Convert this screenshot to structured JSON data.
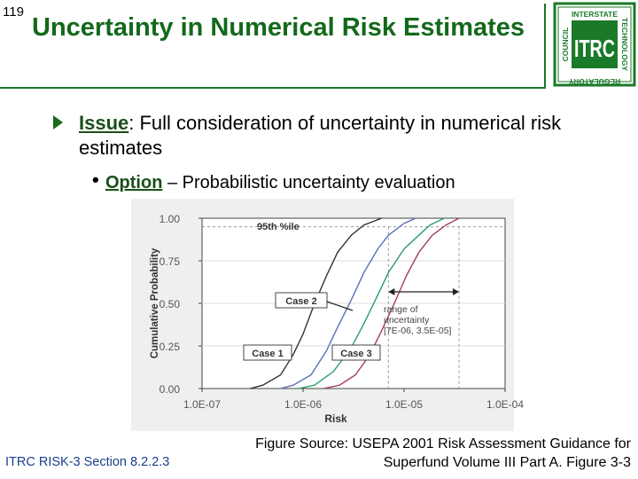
{
  "slide_number": "119",
  "title": "Uncertainty in Numerical Risk Estimates",
  "logo": {
    "main": "ITRC",
    "top": "INTERSTATE",
    "right": "TECHNOLOGY",
    "left": "COUNCIL",
    "bottom": "REGULATORY",
    "color": "#1a7a2a"
  },
  "issue": {
    "label": "Issue",
    "text": ": Full consideration of uncertainty in numerical risk estimates"
  },
  "option": {
    "label": "Option",
    "text": " – Probabilistic uncertainty evaluation"
  },
  "chart_data": {
    "type": "line",
    "ylabel": "Cumulative Probability",
    "xlabel": "Risk",
    "x_scale": "log",
    "xlim": [
      1e-07,
      0.0001
    ],
    "ylim": [
      0,
      1
    ],
    "x_ticks": [
      {
        "value": 1e-07,
        "label": "1.0E-07"
      },
      {
        "value": 1e-06,
        "label": "1.0E-06"
      },
      {
        "value": 1e-05,
        "label": "1.0E-05"
      },
      {
        "value": 0.0001,
        "label": "1.0E-04"
      }
    ],
    "y_ticks": [
      {
        "value": 0,
        "label": "0.00"
      },
      {
        "value": 0.25,
        "label": "0.25"
      },
      {
        "value": 0.5,
        "label": "0.50"
      },
      {
        "value": 0.75,
        "label": "0.75"
      },
      {
        "value": 1,
        "label": "1.00"
      }
    ],
    "series": [
      {
        "name": "Case 1",
        "color": "#333333",
        "points": [
          [
            3e-07,
            0.0
          ],
          [
            4e-07,
            0.02
          ],
          [
            6e-07,
            0.08
          ],
          [
            8e-07,
            0.2
          ],
          [
            1e-06,
            0.32
          ],
          [
            1.3e-06,
            0.5
          ],
          [
            1.7e-06,
            0.66
          ],
          [
            2.2e-06,
            0.8
          ],
          [
            3e-06,
            0.9
          ],
          [
            4e-06,
            0.96
          ],
          [
            6e-06,
            1.0
          ]
        ]
      },
      {
        "name": "Case 2",
        "color": "#5a6fb8",
        "points": [
          [
            6e-07,
            0.0
          ],
          [
            8e-07,
            0.02
          ],
          [
            1.2e-06,
            0.08
          ],
          [
            1.7e-06,
            0.22
          ],
          [
            2.2e-06,
            0.36
          ],
          [
            3e-06,
            0.52
          ],
          [
            4e-06,
            0.68
          ],
          [
            5.5e-06,
            0.82
          ],
          [
            7e-06,
            0.9
          ],
          [
            1e-05,
            0.97
          ],
          [
            1.3e-05,
            1.0
          ]
        ]
      },
      {
        "name": "Case 3",
        "color": "#2e9e6a",
        "points": [
          [
            9e-07,
            0.0
          ],
          [
            1.3e-06,
            0.02
          ],
          [
            2e-06,
            0.1
          ],
          [
            3e-06,
            0.24
          ],
          [
            4e-06,
            0.38
          ],
          [
            5.5e-06,
            0.55
          ],
          [
            7e-06,
            0.68
          ],
          [
            1e-05,
            0.82
          ],
          [
            1.4e-05,
            0.9
          ],
          [
            1.8e-05,
            0.96
          ],
          [
            2.5e-05,
            1.0
          ]
        ]
      },
      {
        "name": "95th %ile curve",
        "color": "#a33a6a",
        "points": [
          [
            1.6e-06,
            0.0
          ],
          [
            2.3e-06,
            0.02
          ],
          [
            3.3e-06,
            0.08
          ],
          [
            4.6e-06,
            0.2
          ],
          [
            6e-06,
            0.34
          ],
          [
            8e-06,
            0.5
          ],
          [
            1.05e-05,
            0.66
          ],
          [
            1.4e-05,
            0.8
          ],
          [
            1.9e-05,
            0.9
          ],
          [
            2.6e-05,
            0.96
          ],
          [
            3.5e-05,
            1.0
          ]
        ]
      }
    ],
    "reference_lines": {
      "p95": 0.95,
      "x_low": 7e-06,
      "x_high": 3.5e-05
    },
    "annotations": {
      "p95": "95th %ile",
      "case1": "Case 1",
      "case2": "Case 2",
      "case3": "Case 3",
      "range": [
        "range of",
        "uncertainty",
        "[7E-06, 3.5E-05]"
      ]
    }
  },
  "footer": {
    "left": "ITRC RISK-3 Section 8.2.2.3",
    "right": "Figure Source: USEPA 2001 Risk Assessment Guidance for Superfund Volume III Part A. Figure 3-3"
  }
}
